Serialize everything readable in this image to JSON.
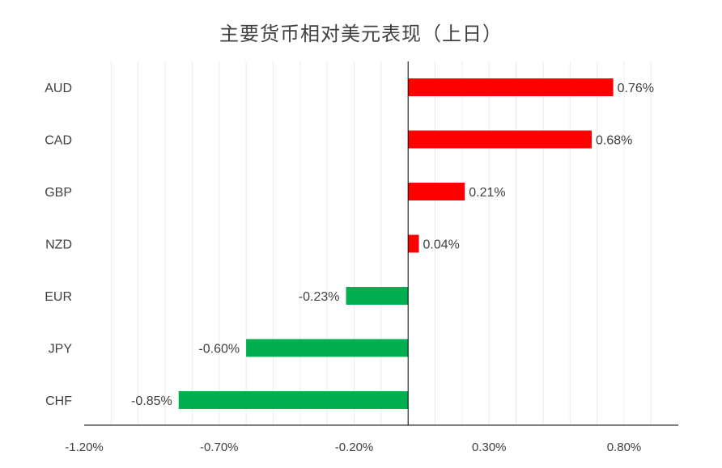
{
  "chart_data": {
    "type": "bar",
    "orientation": "horizontal",
    "title": "主要货币相对美元表现（上日）",
    "categories": [
      "AUD",
      "CAD",
      "GBP",
      "NZD",
      "EUR",
      "JPY",
      "CHF"
    ],
    "values": [
      0.76,
      0.68,
      0.21,
      0.04,
      -0.23,
      -0.6,
      -0.85
    ],
    "value_labels": [
      "0.76%",
      "0.68%",
      "0.21%",
      "0.04%",
      "-0.23%",
      "-0.60%",
      "-0.85%"
    ],
    "x_ticks": [
      -1.2,
      -0.7,
      -0.2,
      0.3,
      0.8
    ],
    "x_tick_labels": [
      "-1.20%",
      "-0.70%",
      "-0.20%",
      "0.30%",
      "0.80%"
    ],
    "xlim": [
      -1.2,
      0.8
    ],
    "xlabel": "",
    "ylabel": "",
    "grid": true,
    "legend": "none",
    "colors": {
      "positive": "#ff0000",
      "negative": "#00b050",
      "grid": "#ececec",
      "axis": "#000000",
      "text": "#404040"
    }
  }
}
